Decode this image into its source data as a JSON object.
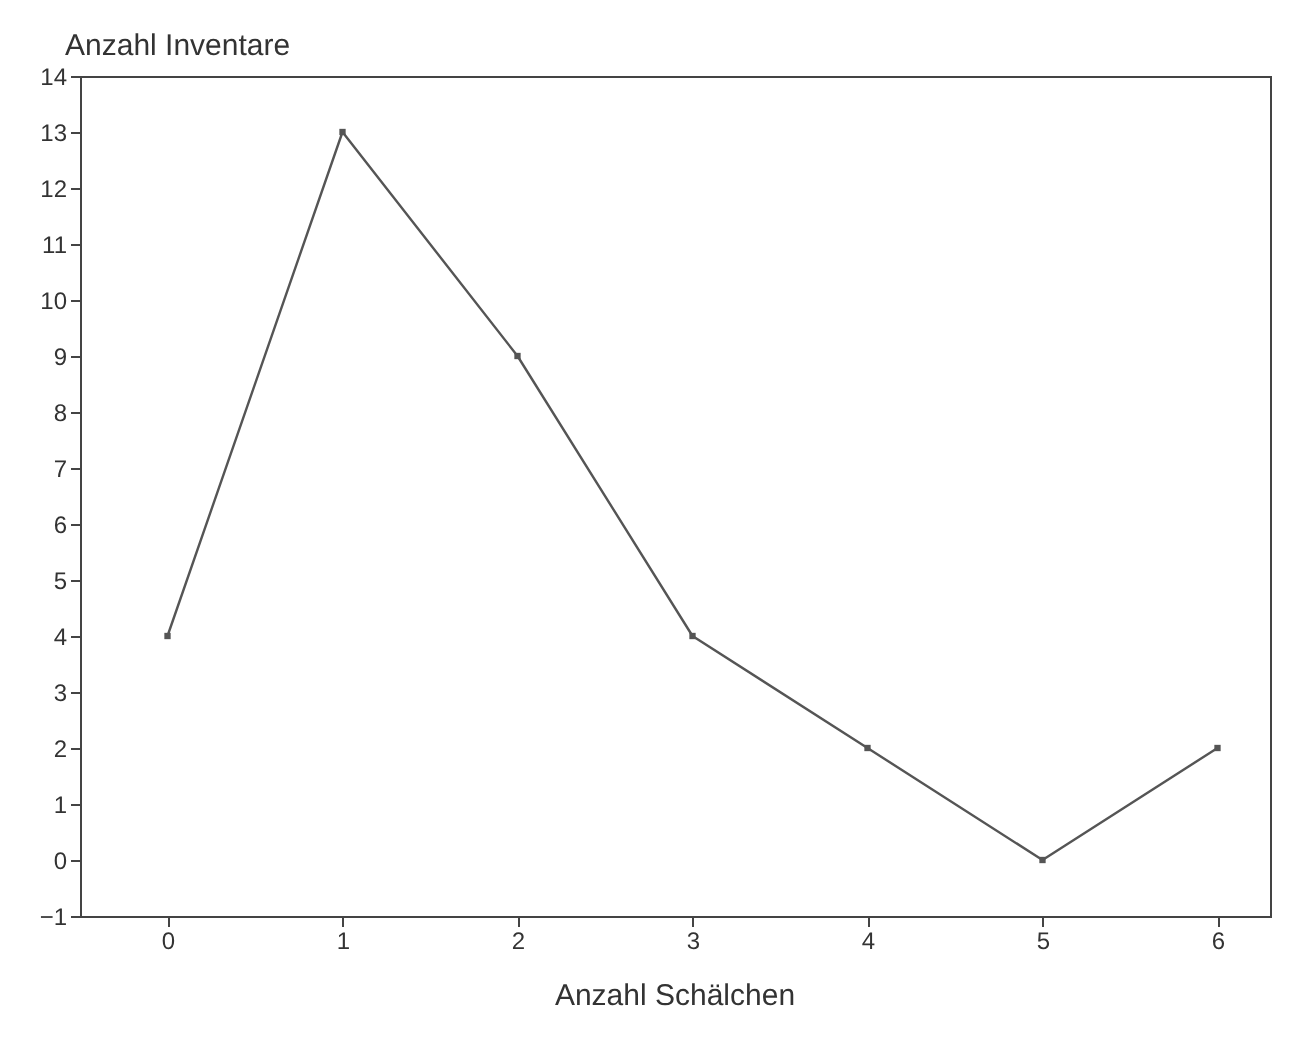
{
  "chart_data": {
    "type": "line",
    "xlabel": "Anzahl Schälchen",
    "ylabel": "Anzahl Inventare",
    "x": [
      0,
      1,
      2,
      3,
      4,
      5,
      6
    ],
    "series": [
      {
        "color": "#555555",
        "values": [
          4,
          13,
          9,
          4,
          2,
          0,
          2
        ]
      }
    ],
    "xlim": [
      -0.5,
      6.3
    ],
    "xticks": [
      0,
      1,
      2,
      3,
      4,
      5,
      6
    ],
    "ylim": [
      -1,
      14
    ],
    "yticks": [
      -1,
      0,
      1,
      2,
      3,
      4,
      5,
      6,
      7,
      8,
      9,
      10,
      11,
      12,
      13,
      14
    ],
    "grid": false,
    "marker": "square",
    "line_style": "solid"
  }
}
